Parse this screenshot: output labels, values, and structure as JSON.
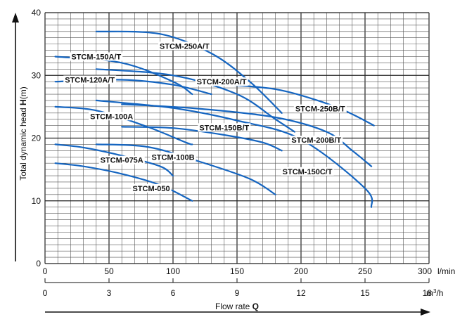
{
  "chart_data": {
    "type": "line",
    "title": "",
    "xlabel": "Flow rate Q",
    "xlabel_main": "Flow rate ",
    "xlabel_symbol": "Q",
    "ylabel_main": "Total dynamic head ",
    "ylabel_symbol": "H",
    "ylabel_unit": "(m)",
    "xlim": [
      0,
      300
    ],
    "ylim": [
      0,
      40
    ],
    "grid": true,
    "x_ticks": [
      0,
      50,
      100,
      150,
      200,
      250,
      300
    ],
    "x_tick_labels": [
      "0",
      "50",
      "100",
      "150",
      "200",
      "250",
      "300"
    ],
    "x_unit": "l/min",
    "x2_ticks": [
      0,
      3,
      6,
      9,
      12,
      15,
      18
    ],
    "x2_tick_labels": [
      "0",
      "3",
      "6",
      "9",
      "12",
      "15",
      "18"
    ],
    "x2_unit_main": "m",
    "x2_unit_sup": "3",
    "x2_unit_tail": "/h",
    "y_ticks": [
      0,
      10,
      20,
      30,
      40
    ],
    "y_tick_labels": [
      "0",
      "10",
      "20",
      "30",
      "40"
    ],
    "series": [
      {
        "name": "STCM-050",
        "x": [
          8,
          30,
          60,
          90,
          115
        ],
        "y": [
          16,
          15.5,
          14.3,
          12.5,
          10
        ],
        "label_at": [
          83,
          12
        ]
      },
      {
        "name": "STCM-075A",
        "x": [
          8,
          30,
          60,
          90,
          100
        ],
        "y": [
          19,
          18.5,
          17.2,
          15.5,
          14
        ],
        "label_at": [
          60,
          16.5
        ]
      },
      {
        "name": "STCM-100B",
        "x": [
          40,
          80,
          120,
          160,
          180
        ],
        "y": [
          19,
          18.6,
          16.3,
          13.5,
          11
        ],
        "label_at": [
          100,
          17
        ]
      },
      {
        "name": "STCM-100A",
        "x": [
          8,
          40,
          80,
          110,
          115
        ],
        "y": [
          25,
          24.4,
          21.8,
          19.3,
          19
        ],
        "label_at": [
          52,
          23.5
        ]
      },
      {
        "name": "STCM-150B/T",
        "x": [
          60,
          100,
          140,
          170,
          185
        ],
        "y": [
          21.8,
          21.6,
          20.5,
          19.3,
          18
        ],
        "label_at": [
          140,
          21.7
        ]
      },
      {
        "name": "STCM-150C/T",
        "x": [
          40,
          100,
          150,
          200,
          250,
          255
        ],
        "y": [
          26,
          24.8,
          22.8,
          19.8,
          12,
          9
        ],
        "label_at": [
          205,
          14.7
        ]
      },
      {
        "name": "STCM-120A/T",
        "x": [
          8,
          60,
          100,
          130
        ],
        "y": [
          29,
          29.3,
          28.5,
          27
        ],
        "label_at": [
          35,
          29.3
        ]
      },
      {
        "name": "STCM-150A/T",
        "x": [
          8,
          60,
          100,
          115
        ],
        "y": [
          33,
          32,
          29,
          27
        ],
        "label_at": [
          40,
          33
        ]
      },
      {
        "name": "STCM-200A/T",
        "x": [
          40,
          100,
          150,
          180,
          195
        ],
        "y": [
          31,
          30,
          27,
          23,
          21
        ],
        "label_at": [
          138,
          29
        ]
      },
      {
        "name": "STCM-200B/T",
        "x": [
          60,
          120,
          180,
          220,
          240,
          255
        ],
        "y": [
          25.4,
          24.7,
          23.3,
          21,
          18,
          15.5
        ],
        "label_at": [
          212,
          19.7
        ]
      },
      {
        "name": "STCM-250A/T",
        "x": [
          40,
          90,
          130,
          160,
          185
        ],
        "y": [
          37,
          36.6,
          33.5,
          29,
          24
        ],
        "label_at": [
          109,
          34.7
        ]
      },
      {
        "name": "STCM-250B/T",
        "x": [
          145,
          180,
          210,
          235,
          257
        ],
        "y": [
          28.5,
          27.8,
          26.2,
          24.3,
          22
        ],
        "label_at": [
          215,
          24.7
        ]
      }
    ]
  }
}
